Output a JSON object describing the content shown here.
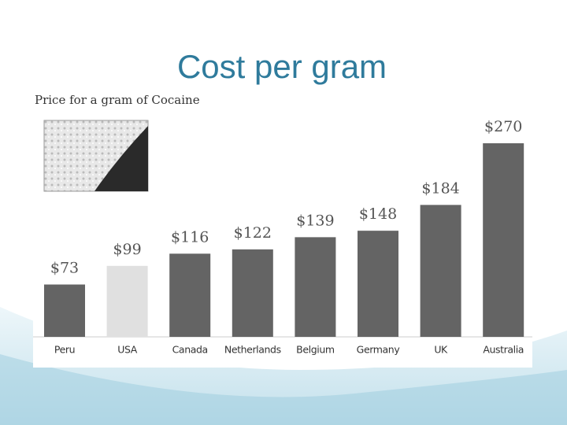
{
  "slide_title": "Cost per gram",
  "chart_data": {
    "type": "bar",
    "title": "Price for a gram of Cocaine",
    "categories": [
      "Peru",
      "USA",
      "Canada",
      "Netherlands",
      "Belgium",
      "Germany",
      "UK",
      "Australia"
    ],
    "values": [
      73,
      99,
      116,
      122,
      139,
      148,
      184,
      270
    ],
    "value_labels": [
      "$73",
      "$99",
      "$116",
      "$122",
      "$139",
      "$148",
      "$184",
      "$270"
    ],
    "colors": [
      "#646464",
      "#e0e0e0",
      "#646464",
      "#646464",
      "#646464",
      "#646464",
      "#646464",
      "#646464"
    ]
  }
}
